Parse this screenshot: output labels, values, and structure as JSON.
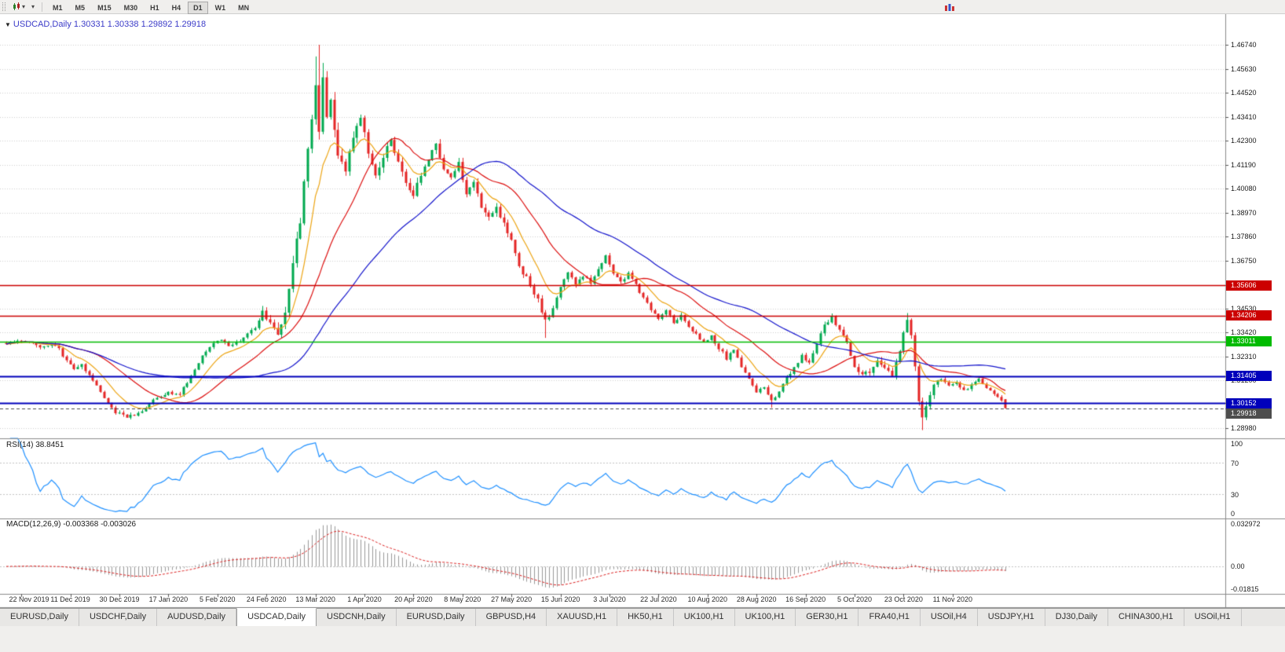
{
  "window": {
    "title": "USDCAD,Daily 1.30331 1.30338 1.29892 1.29918"
  },
  "toolbar": {
    "timeframes": [
      {
        "label": "M1",
        "active": false
      },
      {
        "label": "M5",
        "active": false
      },
      {
        "label": "M15",
        "active": false
      },
      {
        "label": "M30",
        "active": false
      },
      {
        "label": "H1",
        "active": false
      },
      {
        "label": "H4",
        "active": false
      },
      {
        "label": "D1",
        "active": true
      },
      {
        "label": "W1",
        "active": false
      },
      {
        "label": "MN",
        "active": false
      }
    ]
  },
  "panels": {
    "rsi_label": "RSI(14) 38.8451",
    "macd_label": "MACD(12,26,9) -0.003368 -0.003026"
  },
  "tabs": [
    {
      "label": "EURUSD,Daily",
      "active": false
    },
    {
      "label": "USDCHF,Daily",
      "active": false
    },
    {
      "label": "AUDUSD,Daily",
      "active": false
    },
    {
      "label": "USDCAD,Daily",
      "active": true
    },
    {
      "label": "USDCNH,Daily",
      "active": false
    },
    {
      "label": "EURUSD,Daily",
      "active": false
    },
    {
      "label": "GBPUSD,H4",
      "active": false
    },
    {
      "label": "XAUUSD,H1",
      "active": false
    },
    {
      "label": "HK50,H1",
      "active": false
    },
    {
      "label": "UK100,H1",
      "active": false
    },
    {
      "label": "UK100,H1",
      "active": false
    },
    {
      "label": "GER30,H1",
      "active": false
    },
    {
      "label": "FRA40,H1",
      "active": false
    },
    {
      "label": "USOil,H4",
      "active": false
    },
    {
      "label": "USDJPY,H1",
      "active": false
    },
    {
      "label": "DJ30,Daily",
      "active": false
    },
    {
      "label": "CHINA300,H1",
      "active": false
    },
    {
      "label": "USOil,H1",
      "active": false
    }
  ],
  "colors": {
    "bull": "#00a94f",
    "bear": "#e42525",
    "grid": "#cfcfcf",
    "separator": "#8a8a8a",
    "axis_text": "#1a1a1a",
    "rsi_line": "#1e90ff",
    "macd_hist": "#999999",
    "macd_signal": "#dd2222",
    "panel_dotted": "#c4c4c4"
  },
  "chart_data": {
    "type": "candlestick",
    "symbol": "USDCAD",
    "timeframe": "Daily",
    "current_ohlc": {
      "open": 1.30331,
      "high": 1.30338,
      "low": 1.29892,
      "close": 1.29918
    },
    "bar_count": 266,
    "visible_price_range": [
      1.2856,
      1.4801
    ],
    "date_labels": [
      "22 Nov 2019",
      "11 Dec 2019",
      "30 Dec 2019",
      "17 Jan 2020",
      "5 Feb 2020",
      "24 Feb 2020",
      "13 Mar 2020",
      "1 Apr 2020",
      "20 Apr 2020",
      "8 May 2020",
      "27 May 2020",
      "15 Jun 2020",
      "3 Jul 2020",
      "22 Jul 2020",
      "10 Aug 2020",
      "28 Aug 2020",
      "16 Sep 2020",
      "5 Oct 2020",
      "23 Oct 2020",
      "11 Nov 2020"
    ],
    "price_axis_ticks": [
      {
        "text": "1.46740",
        "value": 1.4674
      },
      {
        "text": "1.45630",
        "value": 1.4563
      },
      {
        "text": "1.44520",
        "value": 1.4452
      },
      {
        "text": "1.43410",
        "value": 1.4341
      },
      {
        "text": "1.42300",
        "value": 1.423
      },
      {
        "text": "1.41190",
        "value": 1.4119
      },
      {
        "text": "1.40080",
        "value": 1.4008
      },
      {
        "text": "1.38970",
        "value": 1.3897
      },
      {
        "text": "1.37860",
        "value": 1.3786
      },
      {
        "text": "1.36750",
        "value": 1.3675
      },
      {
        "text": "1.34530",
        "value": 1.3453
      },
      {
        "text": "1.33420",
        "value": 1.3342
      },
      {
        "text": "1.32310",
        "value": 1.3231
      },
      {
        "text": "1.31200",
        "value": 1.312
      },
      {
        "text": "1.28980",
        "value": 1.2898
      }
    ],
    "horizontal_levels": [
      {
        "text": "1.35606",
        "value": 1.35606,
        "color": "#cc0000",
        "style": "solid",
        "width": 1.5,
        "role": "resistance-line"
      },
      {
        "text": "1.34206",
        "value": 1.34206,
        "color": "#cc0000",
        "style": "solid",
        "width": 1.5,
        "role": "resistance-line"
      },
      {
        "text": "1.33011",
        "value": 1.33011,
        "color": "#00bb00",
        "style": "solid",
        "width": 1.5,
        "role": "level-line"
      },
      {
        "text": "1.31405",
        "value": 1.31405,
        "color": "#0000bb",
        "style": "solid",
        "width": 2,
        "role": "support-line"
      },
      {
        "text": "1.30152",
        "value": 1.30152,
        "color": "#0000bb",
        "style": "solid",
        "width": 2,
        "role": "support-line"
      },
      {
        "text": "1.29918",
        "value": 1.29918,
        "color": "#4d4d4d",
        "style": "dashed",
        "width": 1,
        "role": "current-price-line"
      }
    ],
    "moving_averages": [
      {
        "period": 10,
        "method": "ema",
        "color": "#eda514"
      },
      {
        "period": 24,
        "method": "sma",
        "color": "#dd1111"
      },
      {
        "period": 52,
        "method": "sma",
        "color": "#1414cc"
      }
    ],
    "rsi": {
      "period": 14,
      "current": 38.8451,
      "scale": [
        0,
        100
      ],
      "axis_labels": [
        {
          "text": "100",
          "value": 100
        },
        {
          "text": "70",
          "value": 70
        },
        {
          "text": "30",
          "value": 30
        },
        {
          "text": "0",
          "value": 0
        }
      ],
      "dotted_levels": [
        70,
        30
      ]
    },
    "macd": {
      "fast": 12,
      "slow": 26,
      "signal": 9,
      "current_main": -0.003368,
      "current_signal": -0.003026,
      "scale": [
        -0.01815,
        0.032972
      ],
      "axis_labels": [
        {
          "text": "0.032972",
          "value": 0.032972
        },
        {
          "text": "0.00",
          "value": 0
        },
        {
          "text": "-0.01815",
          "value": -0.01815
        }
      ]
    },
    "close_anchors": [
      [
        0,
        1.3295
      ],
      [
        3,
        1.331
      ],
      [
        6,
        1.33
      ],
      [
        9,
        1.3275
      ],
      [
        12,
        1.3292
      ],
      [
        14,
        1.3262
      ],
      [
        16,
        1.3215
      ],
      [
        18,
        1.3172
      ],
      [
        20,
        1.3195
      ],
      [
        23,
        1.312
      ],
      [
        26,
        1.3035
      ],
      [
        29,
        1.2975
      ],
      [
        32,
        1.2952
      ],
      [
        35,
        1.2968
      ],
      [
        37,
        1.2996
      ],
      [
        40,
        1.3042
      ],
      [
        43,
        1.3062
      ],
      [
        46,
        1.3056
      ],
      [
        49,
        1.314
      ],
      [
        52,
        1.323
      ],
      [
        55,
        1.3296
      ],
      [
        57,
        1.3312
      ],
      [
        59,
        1.3274
      ],
      [
        62,
        1.3306
      ],
      [
        64,
        1.333
      ],
      [
        66,
        1.3362
      ],
      [
        68,
        1.3446
      ],
      [
        70,
        1.3382
      ],
      [
        72,
        1.3342
      ],
      [
        74,
        1.3442
      ],
      [
        76,
        1.3652
      ],
      [
        78,
        1.3862
      ],
      [
        80,
        1.418
      ],
      [
        82,
        1.448
      ],
      [
        83,
        1.4262
      ],
      [
        84,
        1.45
      ],
      [
        85,
        1.4332
      ],
      [
        86,
        1.443
      ],
      [
        88,
        1.4162
      ],
      [
        90,
        1.4072
      ],
      [
        92,
        1.4252
      ],
      [
        94,
        1.4332
      ],
      [
        96,
        1.4182
      ],
      [
        98,
        1.4072
      ],
      [
        100,
        1.4162
      ],
      [
        102,
        1.4232
      ],
      [
        104,
        1.4142
      ],
      [
        106,
        1.4032
      ],
      [
        108,
        1.3966
      ],
      [
        110,
        1.4082
      ],
      [
        112,
        1.4142
      ],
      [
        114,
        1.4202
      ],
      [
        116,
        1.4112
      ],
      [
        118,
        1.4062
      ],
      [
        120,
        1.4132
      ],
      [
        122,
        1.3992
      ],
      [
        124,
        1.4032
      ],
      [
        126,
        1.3932
      ],
      [
        128,
        1.3882
      ],
      [
        130,
        1.3912
      ],
      [
        132,
        1.3842
      ],
      [
        134,
        1.3772
      ],
      [
        136,
        1.3652
      ],
      [
        139,
        1.3562
      ],
      [
        141,
        1.3492
      ],
      [
        143,
        1.3392
      ],
      [
        145,
        1.3452
      ],
      [
        147,
        1.3552
      ],
      [
        149,
        1.3622
      ],
      [
        151,
        1.3562
      ],
      [
        153,
        1.3602
      ],
      [
        155,
        1.3572
      ],
      [
        157,
        1.3632
      ],
      [
        159,
        1.3692
      ],
      [
        161,
        1.3612
      ],
      [
        163,
        1.3572
      ],
      [
        165,
        1.3612
      ],
      [
        167,
        1.3562
      ],
      [
        169,
        1.3506
      ],
      [
        171,
        1.3452
      ],
      [
        173,
        1.3412
      ],
      [
        175,
        1.3442
      ],
      [
        177,
        1.3392
      ],
      [
        179,
        1.3422
      ],
      [
        181,
        1.3372
      ],
      [
        183,
        1.3332
      ],
      [
        185,
        1.3292
      ],
      [
        187,
        1.3322
      ],
      [
        189,
        1.3272
      ],
      [
        191,
        1.3222
      ],
      [
        193,
        1.3256
      ],
      [
        195,
        1.3182
      ],
      [
        197,
        1.3122
      ],
      [
        199,
        1.3062
      ],
      [
        201,
        1.3086
      ],
      [
        203,
        1.3026
      ],
      [
        205,
        1.3062
      ],
      [
        207,
        1.3132
      ],
      [
        209,
        1.3182
      ],
      [
        211,
        1.3232
      ],
      [
        213,
        1.3202
      ],
      [
        215,
        1.3292
      ],
      [
        217,
        1.3372
      ],
      [
        219,
        1.3416
      ],
      [
        221,
        1.3352
      ],
      [
        223,
        1.3292
      ],
      [
        225,
        1.3192
      ],
      [
        227,
        1.3142
      ],
      [
        229,
        1.3162
      ],
      [
        231,
        1.3212
      ],
      [
        233,
        1.3172
      ],
      [
        235,
        1.3142
      ],
      [
        237,
        1.3262
      ],
      [
        239,
        1.3402
      ],
      [
        240,
        1.3332
      ],
      [
        241,
        1.3182
      ],
      [
        242,
        1.3022
      ],
      [
        243,
        1.2942
      ],
      [
        244,
        1.2992
      ],
      [
        245,
        1.3052
      ],
      [
        246,
        1.3102
      ],
      [
        248,
        1.3136
      ],
      [
        250,
        1.3092
      ],
      [
        252,
        1.3116
      ],
      [
        254,
        1.3072
      ],
      [
        256,
        1.3102
      ],
      [
        258,
        1.3126
      ],
      [
        260,
        1.3082
      ],
      [
        262,
        1.3052
      ],
      [
        264,
        1.3033
      ],
      [
        265,
        1.29918
      ]
    ],
    "volatility_anchors": [
      [
        0,
        0.0014
      ],
      [
        20,
        0.0016
      ],
      [
        40,
        0.0014
      ],
      [
        62,
        0.0013
      ],
      [
        68,
        0.0022
      ],
      [
        74,
        0.0045
      ],
      [
        86,
        0.0052
      ],
      [
        95,
        0.0038
      ],
      [
        110,
        0.0032
      ],
      [
        130,
        0.0026
      ],
      [
        145,
        0.0024
      ],
      [
        160,
        0.0018
      ],
      [
        180,
        0.0016
      ],
      [
        200,
        0.0016
      ],
      [
        215,
        0.0018
      ],
      [
        236,
        0.0024
      ],
      [
        243,
        0.0032
      ],
      [
        250,
        0.0016
      ],
      [
        265,
        0.0012
      ]
    ],
    "wick_overrides": {
      "32": {
        "low": 1.2948
      },
      "68": {
        "high": 1.3465
      },
      "82": {
        "high": 1.462
      },
      "83": {
        "high": 1.4674
      },
      "84": {
        "high": 1.459
      },
      "143": {
        "low": 1.3317
      },
      "203": {
        "low": 1.2994
      },
      "219": {
        "high": 1.343
      },
      "239": {
        "high": 1.3432
      },
      "243": {
        "low": 1.289
      }
    }
  }
}
